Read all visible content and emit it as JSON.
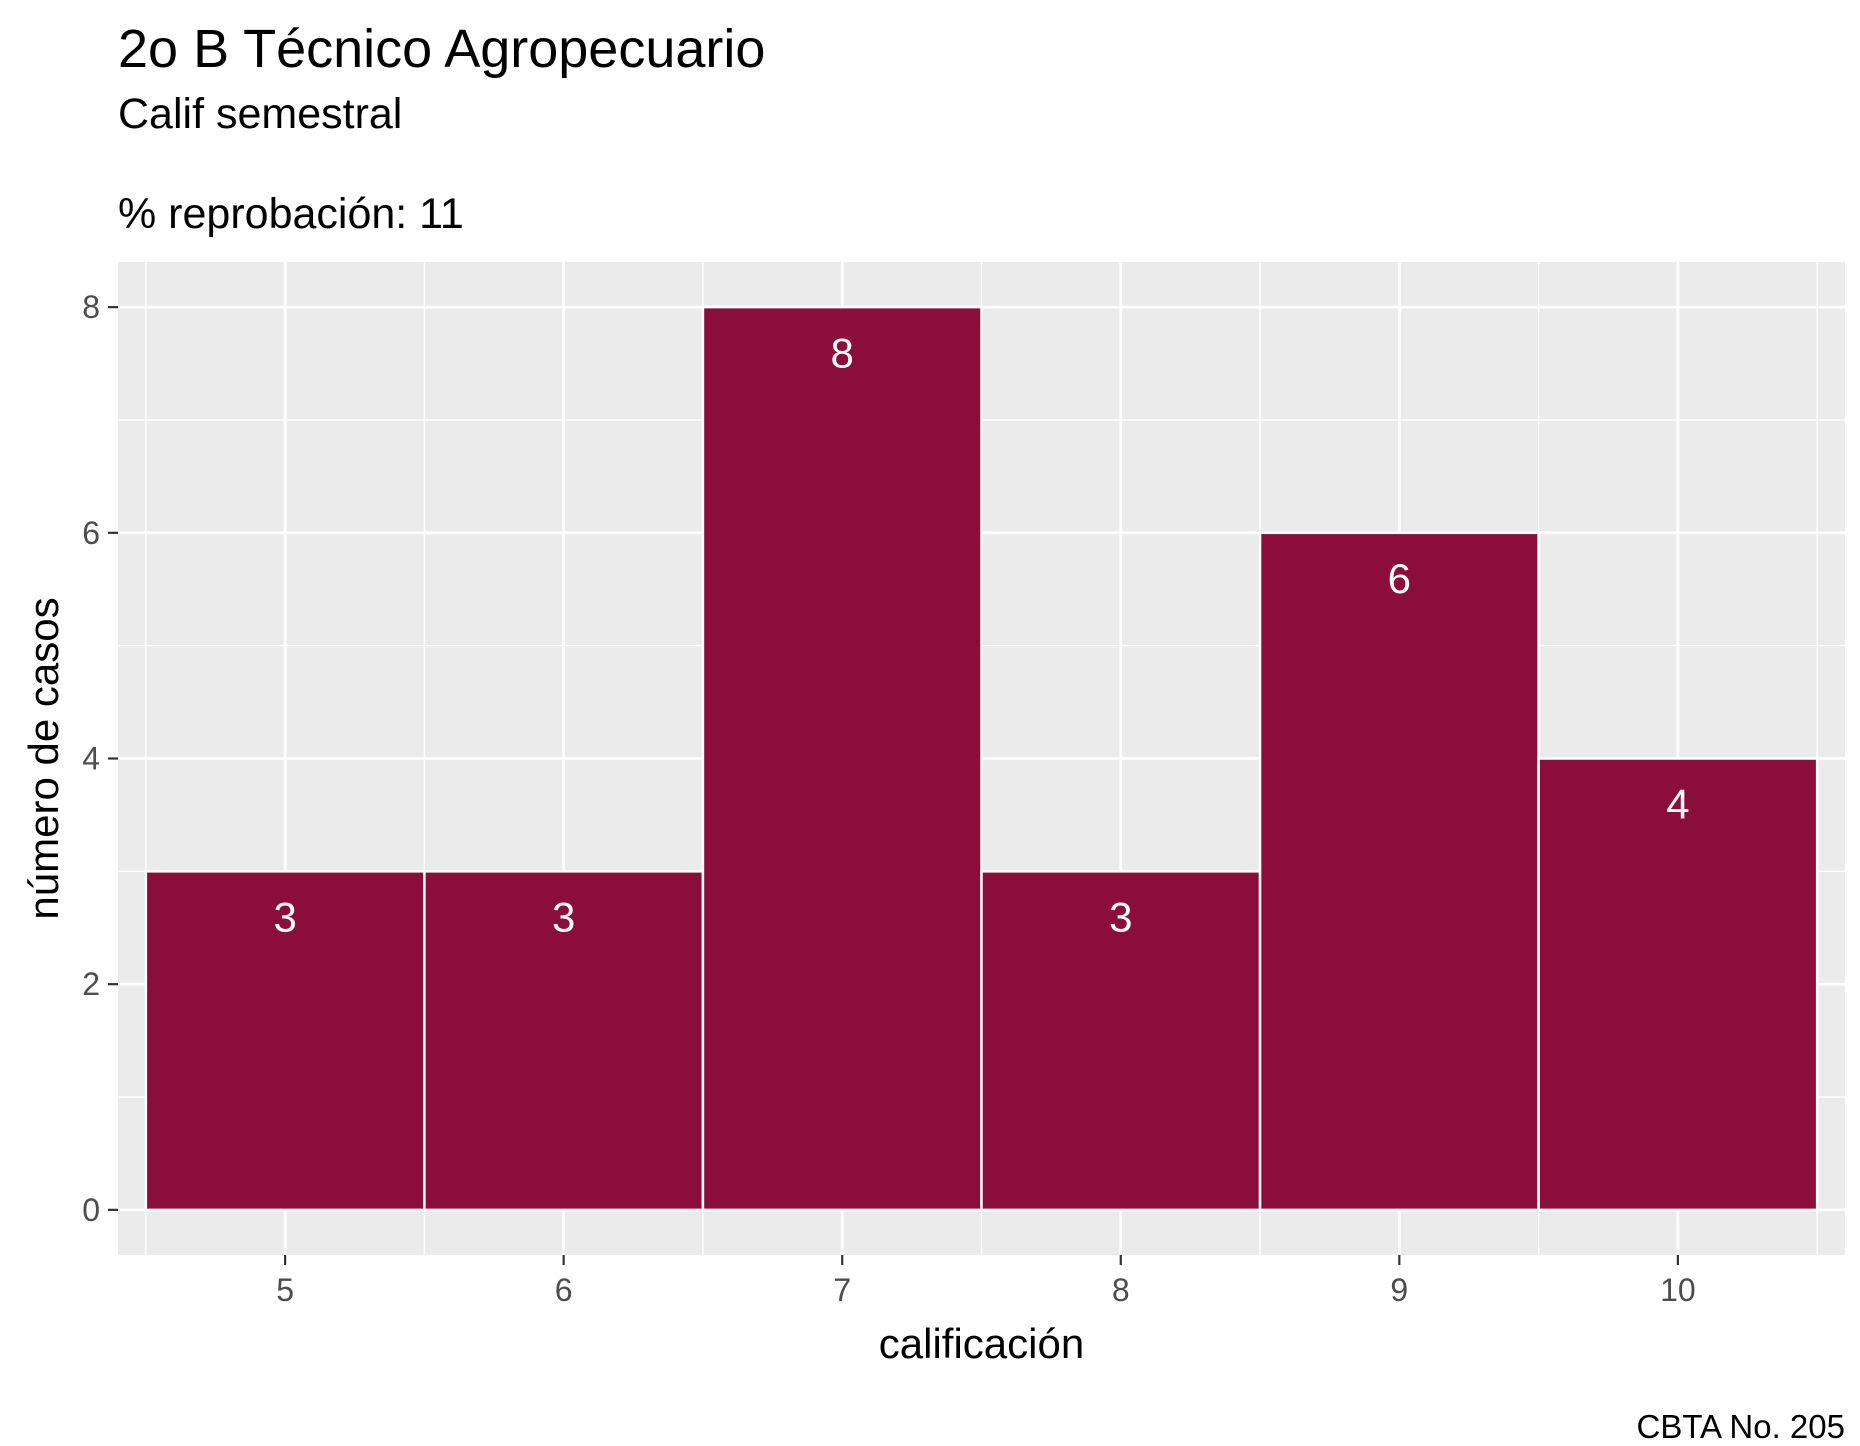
{
  "chart_data": {
    "type": "bar",
    "title": "2o B Técnico Agropecuario",
    "subtitle": "Calif semestral",
    "note": "% reprobación: 11",
    "caption": "CBTA No. 205",
    "xlabel": "calificación",
    "ylabel": "número de casos",
    "categories": [
      "5",
      "6",
      "7",
      "8",
      "9",
      "10"
    ],
    "values": [
      3,
      3,
      8,
      3,
      6,
      4
    ],
    "data_labels": [
      "3",
      "3",
      "8",
      "3",
      "6",
      "4"
    ],
    "y_ticks": [
      0,
      2,
      4,
      6,
      8
    ],
    "y_tick_labels": [
      "0",
      "2",
      "4",
      "6",
      "8"
    ],
    "ylim": [
      -0.4,
      8.4
    ],
    "grid": true,
    "bar_color": "#8B0E3A",
    "panel_color": "#EBEBEB",
    "grid_color": "#FFFFFF"
  }
}
